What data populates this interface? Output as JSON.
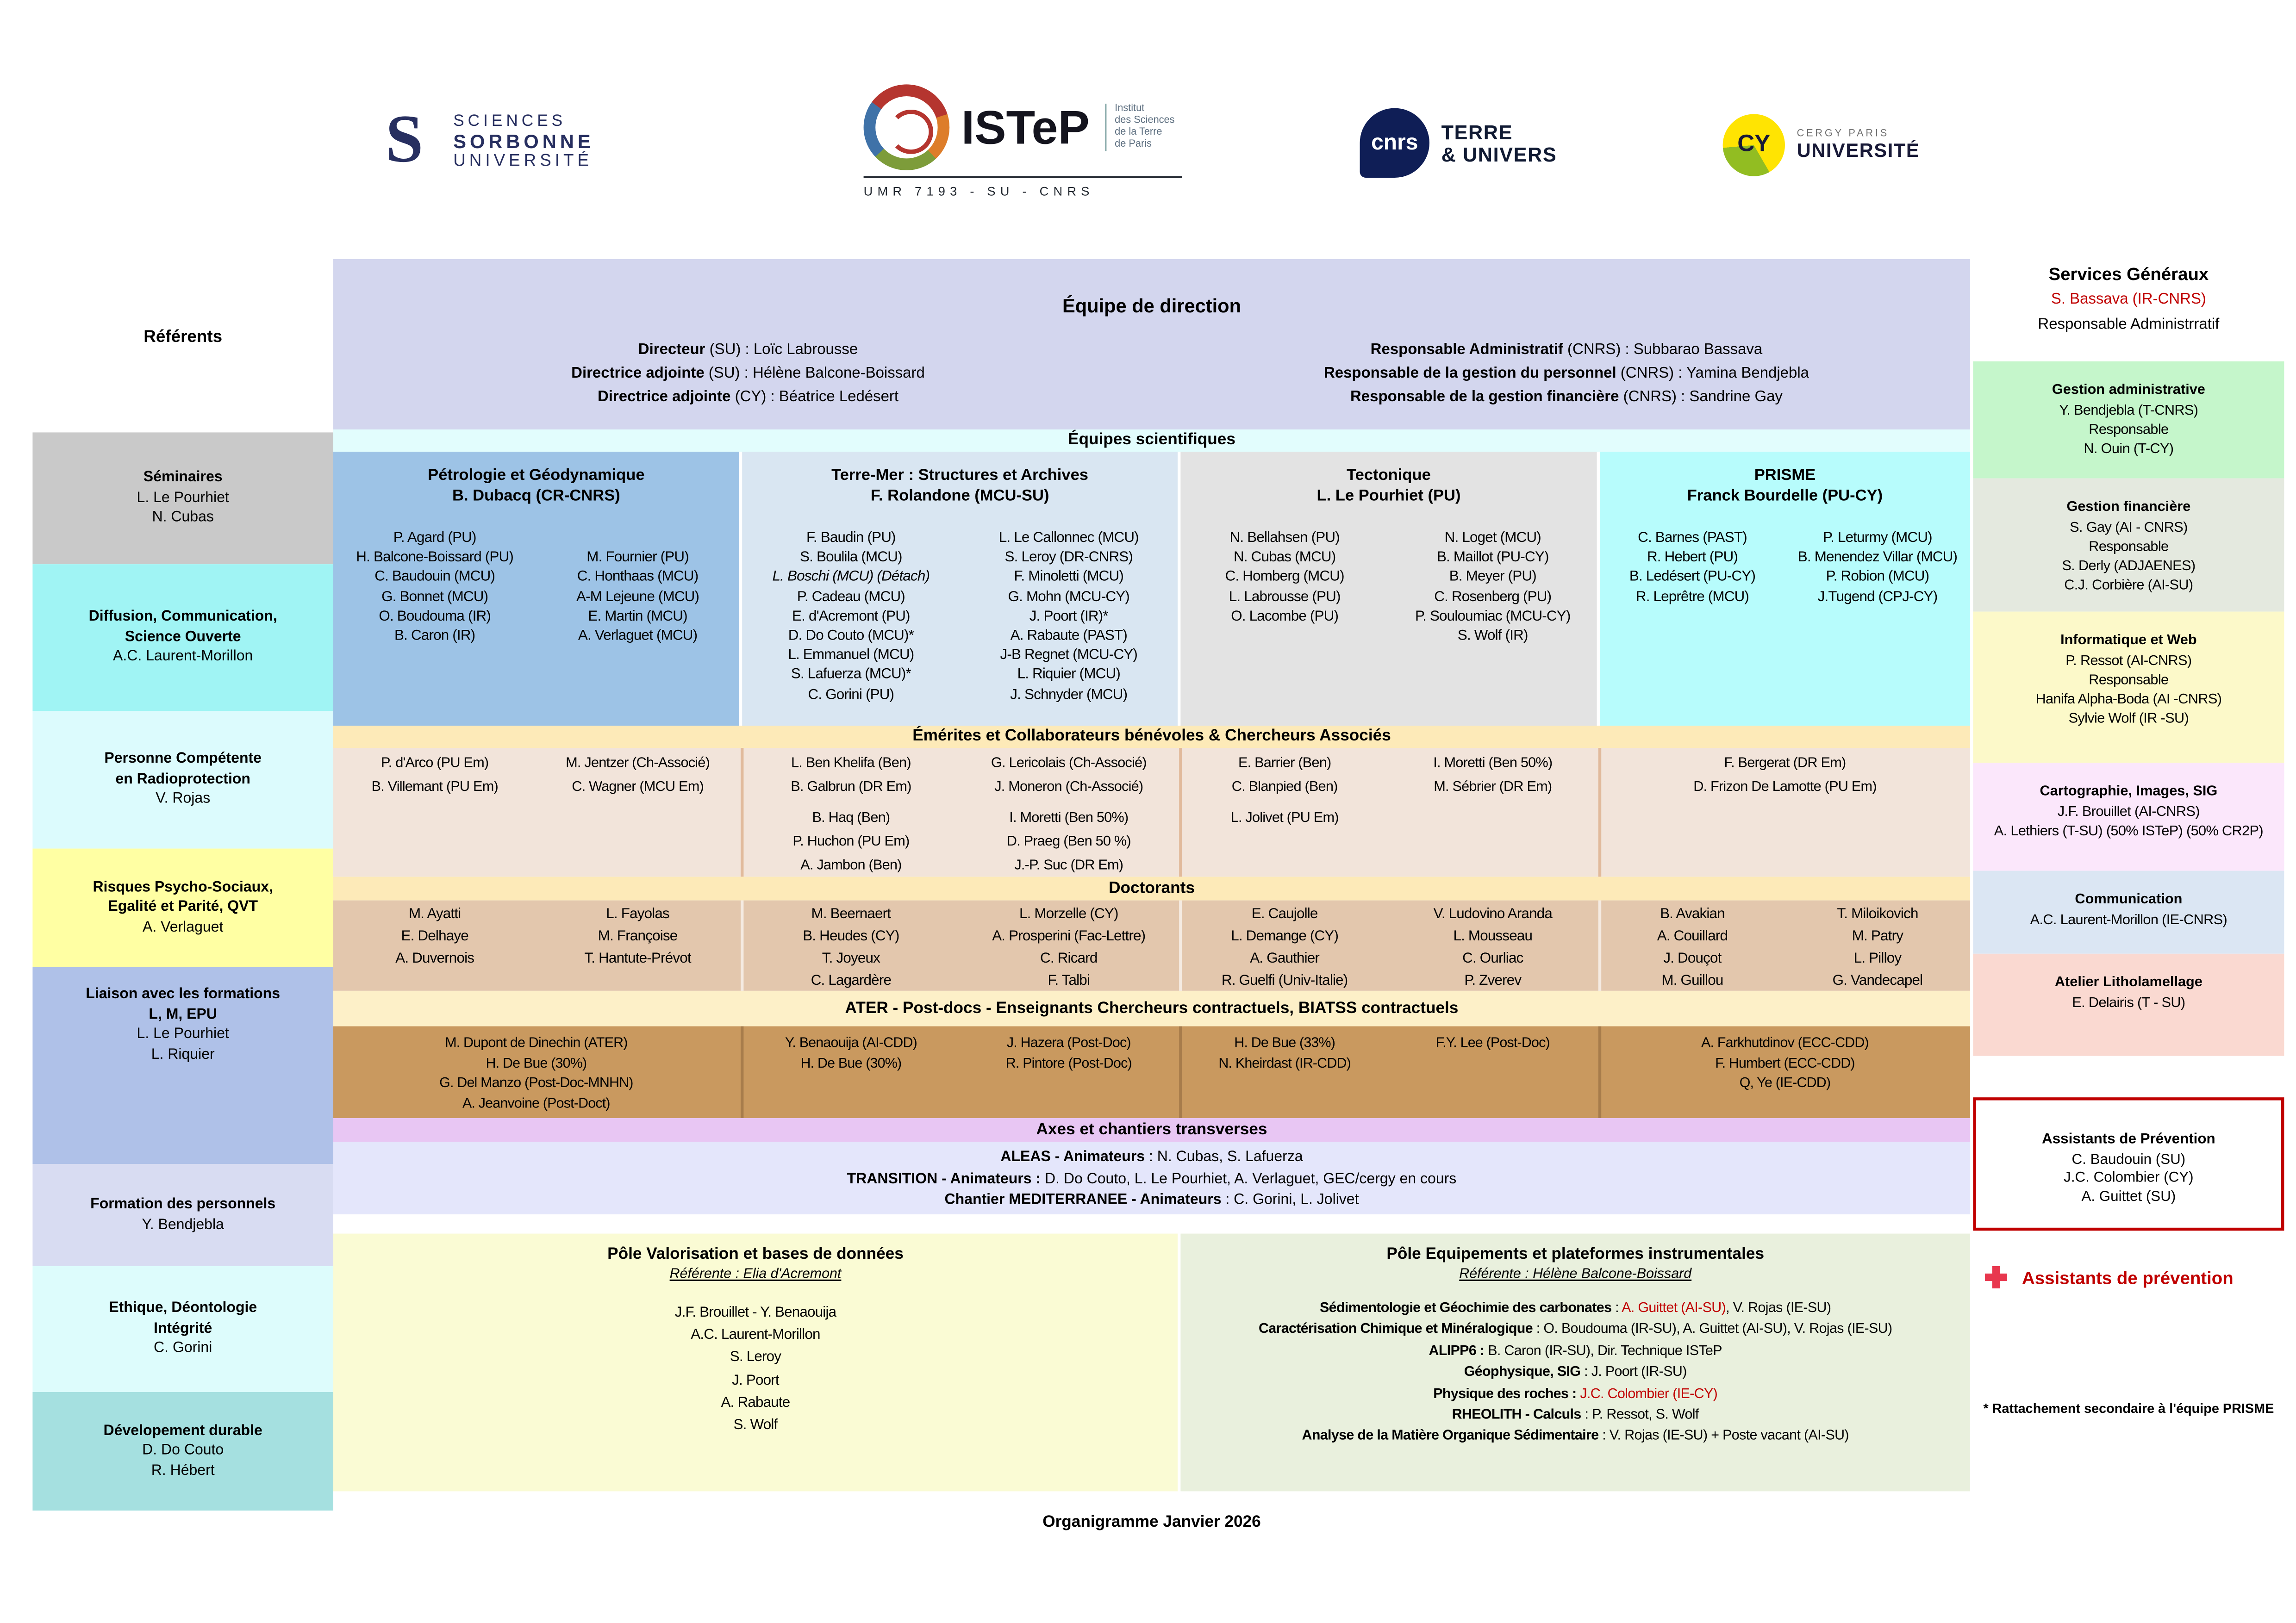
{
  "logos": {
    "sorbonne": {
      "mark": "S",
      "line1": "SCIENCES",
      "line2": "SORBONNE",
      "line3": "UNIVERSITÉ"
    },
    "istep": {
      "name": "ISTeP",
      "sub1": "Institut",
      "sub2": "des Sciences",
      "sub3": "de la Terre",
      "sub4": "de Paris",
      "umr": "UMR 7193 - SU - CNRS"
    },
    "cnrs": {
      "name": "cnrs",
      "line1": "TERRE",
      "line2": "& UNIVERS"
    },
    "cy": {
      "name": "CY",
      "line1": "CERGY PARIS",
      "line2": "UNIVERSITÉ"
    }
  },
  "referents": {
    "title": "Référents",
    "items": [
      {
        "title_lines": [
          "Séminaires"
        ],
        "names": [
          "L. Le Pourhiet",
          "N. Cubas"
        ],
        "color": "#c9c9c9"
      },
      {
        "title_lines": [
          "Diffusion, Communication,",
          "Science Ouverte"
        ],
        "names": [
          "A.C. Laurent-Morillon"
        ],
        "color": "#a0f4f4"
      },
      {
        "title_lines": [
          "Personne Compétente",
          "en Radioprotection"
        ],
        "names": [
          "V. Rojas"
        ],
        "color": "#dcfbfd"
      },
      {
        "title_lines": [
          "Risques Psycho-Sociaux,",
          "Egalité et Parité, QVT"
        ],
        "names": [
          "A. Verlaguet"
        ],
        "color": "#ffffa3"
      },
      {
        "title_lines": [
          "Liaison avec les formations",
          "L, M, EPU"
        ],
        "names": [
          "L. Le Pourhiet",
          "L. Riquier"
        ],
        "color": "#afc1e8"
      },
      {
        "title_lines": [
          "Formation des personnels"
        ],
        "names": [
          "Y. Bendjebla"
        ],
        "color": "#d8dcf2"
      },
      {
        "title_lines": [
          "Ethique, Déontologie",
          "Intégrité"
        ],
        "names": [
          "C. Gorini"
        ],
        "color": "#ddfcfc"
      },
      {
        "title_lines": [
          "Dévelopement durable"
        ],
        "names": [
          "D. Do Couto",
          "R. Hébert"
        ],
        "color": "#a5e0e0"
      }
    ]
  },
  "direction": {
    "title": "Équipe de direction",
    "left_lines": [
      {
        "bold": "Directeur",
        "rest": " (SU) : Loïc Labrousse"
      },
      {
        "bold": "Directrice adjointe",
        "rest": " (SU) : Hélène Balcone-Boissard"
      },
      {
        "bold": "Directrice adjointe",
        "rest": " (CY) : Béatrice Ledésert"
      }
    ],
    "right_lines": [
      {
        "bold": "Responsable Administratif",
        "rest": " (CNRS) : Subbarao Bassava"
      },
      {
        "bold": "Responsable de la gestion du personnel",
        "rest": " (CNRS) : Yamina Bendjebla"
      },
      {
        "bold": "Responsable de la gestion financière",
        "rest": " (CNRS) : Sandrine Gay"
      }
    ]
  },
  "bands": {
    "equipes": "Équipes scientifiques"
  },
  "teams": [
    {
      "header_lines": [
        "Pétrologie et Géodynamique",
        "B. Dubacq (CR-CNRS)"
      ],
      "color": "#9dc3e6",
      "col1": [
        "P. Agard (PU)",
        "H. Balcone-Boissard (PU)",
        "C. Baudouin (MCU)",
        "G. Bonnet (MCU)",
        "O. Boudouma (IR)",
        "B. Caron (IR)"
      ],
      "col2": [
        "",
        "M. Fournier (PU)",
        "C. Honthaas (MCU)",
        "A-M Lejeune (MCU)",
        "E. Martin (MCU)",
        "A. Verlaguet (MCU)"
      ]
    },
    {
      "header_lines": [
        "Terre-Mer : Structures et Archives",
        "F. Rolandone (MCU-SU)"
      ],
      "color": "#d9e6f2",
      "col1": [
        "F. Baudin (PU)",
        "S. Boulila (MCU)",
        {
          "t": "L. Boschi (MCU) (Détach)",
          "i": true
        },
        "P. Cadeau (MCU)",
        "E. d'Acremont (PU)",
        "D. Do Couto (MCU)*",
        "L. Emmanuel (MCU)",
        "S. Lafuerza  (MCU)*",
        "C. Gorini (PU)"
      ],
      "col2": [
        "L. Le Callonnec (MCU)",
        "S. Leroy (DR-CNRS)",
        "F. Minoletti (MCU)",
        "G. Mohn (MCU-CY)",
        "J. Poort (IR)*",
        "A. Rabaute (PAST)",
        "J-B Regnet (MCU-CY)",
        "L. Riquier (MCU)",
        "J. Schnyder (MCU)"
      ]
    },
    {
      "header_lines": [
        "Tectonique",
        "L. Le Pourhiet (PU)"
      ],
      "color": "#e3e3e3",
      "col1": [
        "N. Bellahsen (PU)",
        "N. Cubas (MCU)",
        "C. Homberg (MCU)",
        "L. Labrousse (PU)",
        "O. Lacombe (PU)"
      ],
      "col2": [
        "N. Loget (MCU)",
        "B. Maillot (PU-CY)",
        "B. Meyer (PU)",
        "C. Rosenberg (PU)",
        "P. Souloumiac  (MCU-CY)",
        "S. Wolf (IR)"
      ]
    },
    {
      "header_lines": [
        "PRISME",
        "Franck Bourdelle (PU-CY)"
      ],
      "color": "#b7fcfc",
      "col1": [
        "C. Barnes (PAST)",
        "R. Hebert (PU)",
        "B. Ledésert (PU-CY)",
        "R. Leprêtre (MCU)"
      ],
      "col2": [
        "P. Leturmy (MCU)",
        "B. Menendez Villar (MCU)",
        "P. Robion (MCU)",
        "J.Tugend (CPJ-CY)"
      ]
    }
  ],
  "emerites": {
    "title": "Émérites et Collaborateurs bénévoles & Chercheurs Associés",
    "cols": [
      {
        "col1": [
          "P. d'Arco (PU Em)",
          "B. Villemant (PU Em)"
        ],
        "col2": [
          "M. Jentzer (Ch-Associé)",
          "C. Wagner (MCU Em)"
        ]
      },
      {
        "col1": [
          "L. Ben Khelifa (Ben)",
          "B. Galbrun  (DR Em)",
          "B. Haq (Ben)",
          "P. Huchon (PU Em)",
          "A. Jambon (Ben)"
        ],
        "col2": [
          "G. Lericolais (Ch-Associé)",
          "J. Moneron (Ch-Associé)",
          "I. Moretti (Ben 50%)",
          "D. Praeg (Ben 50 %)",
          "J.-P. Suc (DR Em)"
        ]
      },
      {
        "col1": [
          "E. Barrier (Ben)",
          "C. Blanpied (Ben)",
          "L. Jolivet (PU Em)"
        ],
        "col2": [
          "I. Moretti (Ben 50%)",
          "M. Sébrier (DR Em)"
        ]
      },
      {
        "center": [
          "F. Bergerat (DR Em)",
          "D. Frizon De Lamotte (PU Em)"
        ]
      }
    ]
  },
  "doctorants": {
    "title": "Doctorants",
    "cols": [
      {
        "col1": [
          "M. Ayatti",
          "E. Delhaye",
          "A. Duvernois"
        ],
        "col2": [
          "L. Fayolas",
          "M. Françoise",
          "T. Hantute-Prévot"
        ]
      },
      {
        "col1": [
          "M. Beernaert",
          "B. Heudes (CY)",
          "T. Joyeux",
          "C. Lagardère"
        ],
        "col2": [
          "L. Morzelle (CY)",
          "A. Prosperini (Fac-Lettre)",
          "C. Ricard",
          "F. Talbi"
        ]
      },
      {
        "col1": [
          "E. Caujolle",
          "L. Demange (CY)",
          "A. Gauthier",
          "R. Guelfi (Univ-Italie)"
        ],
        "col2": [
          "V. Ludovino Aranda",
          "L. Mousseau",
          "C. Ourliac",
          "P. Zverev"
        ]
      },
      {
        "col1": [
          "B. Avakian",
          "A. Couillard",
          "J. Douçot",
          "M. Guillou"
        ],
        "col2": [
          "T. Miloikovich",
          "M. Patry",
          "L. Pilloy",
          "G. Vandecapel"
        ]
      }
    ]
  },
  "ater": {
    "title": "ATER - Post-docs - Enseignants Chercheurs contractuels, BIATSS contractuels",
    "cols": [
      {
        "center": [
          "M. Dupont de Dinechin (ATER)",
          "H. De Bue (30%)",
          "G. Del Manzo (Post-Doc-MNHN)",
          "A. Jeanvoine (Post-Doct)"
        ]
      },
      {
        "col1": [
          "Y. Benaouija (AI-CDD)",
          "H. De Bue (30%)"
        ],
        "col2": [
          "J. Hazera (Post-Doc)",
          "R. Pintore (Post-Doc)"
        ]
      },
      {
        "col1": [
          "H. De Bue (33%)",
          "N. Kheirdast (IR-CDD)"
        ],
        "col2": [
          "F.Y. Lee (Post-Doc)"
        ]
      },
      {
        "center": [
          "A. Farkhutdinov (ECC-CDD)",
          "F. Humbert (ECC-CDD)",
          "Q, Ye (IE-CDD)"
        ]
      }
    ]
  },
  "axes": {
    "title": "Axes et chantiers transverses",
    "lines": [
      {
        "bold": "ALEAS -  Animateurs",
        "rest": " : N. Cubas, S. Lafuerza"
      },
      {
        "bold": "TRANSITION - Animateurs :",
        "rest": " D. Do Couto, L. Le Pourhiet, A. Verlaguet, GEC/cergy en cours"
      },
      {
        "bold": "Chantier MEDITERRANEE -  Animateurs",
        "rest": " : C. Gorini, L. Jolivet"
      }
    ]
  },
  "pole_valorisation": {
    "title": "Pôle Valorisation et bases de données",
    "referente": "Référente : Elia d'Acremont",
    "members": [
      "J.F. Brouillet - Y. Benaouija",
      "A.C. Laurent-Morillon",
      "S. Leroy",
      "J. Poort",
      "A. Rabaute",
      "S. Wolf"
    ]
  },
  "pole_equipements": {
    "title": "Pôle Equipements et plateformes instrumentales",
    "referente": "Référente : Hélène Balcone-Boissard",
    "lines": [
      [
        {
          "t": "Sédimentologie et Géochimie des carbonates",
          "b": true
        },
        {
          "t": " : "
        },
        {
          "t": "A. Guittet (AI-SU)",
          "r": true
        },
        {
          "t": ", V. Rojas (IE-SU)"
        }
      ],
      [
        {
          "t": "Caractérisation Chimique et Minéralogique",
          "b": true
        },
        {
          "t": " : O. Boudouma (IR-SU), A. Guittet (AI-SU), V. Rojas (IE-SU)"
        }
      ],
      [
        {
          "t": "ALIPP6 :",
          "b": true
        },
        {
          "t": " B. Caron (IR-SU), Dir. Technique ISTeP"
        }
      ],
      [
        {
          "t": "Géophysique, SIG",
          "b": true
        },
        {
          "t": " : J. Poort (IR-SU)"
        }
      ],
      [
        {
          "t": "Physique des roches :",
          "b": true
        },
        {
          "t": " "
        },
        {
          "t": "J.C. Colombier (IE-CY)",
          "r": true
        }
      ],
      [
        {
          "t": "RHEOLITH - Calculs",
          "b": true
        },
        {
          "t": " : P. Ressot, S. Wolf"
        }
      ],
      [
        {
          "t": "Analyse de la Matière Organique Sédimentaire",
          "b": true
        },
        {
          "t": " : V. Rojas (IE-SU) + Poste vacant (AI-SU)"
        }
      ]
    ]
  },
  "services": {
    "title": "Services Généraux",
    "name": "S. Bassava (IR-CNRS)",
    "name_color": "#c00000",
    "role": "Responsable Administrratif",
    "boxes": [
      {
        "title": "Gestion administrative",
        "lines": [
          "Y. Bendjebla (T-CNRS)",
          "Responsable",
          "N. Ouin (T-CY)"
        ],
        "color": "#c5f6cb"
      },
      {
        "title": "Gestion financière",
        "lines": [
          "S. Gay (AI - CNRS)",
          "Responsable",
          "S. Derly (ADJAENES)",
          "C.J. Corbière (AI-SU)"
        ],
        "color": "#e4e9df"
      },
      {
        "title": "Informatique et Web",
        "lines": [
          "P. Ressot (AI-CNRS)",
          "Responsable",
          "Hanifa Alpha-Boda (AI -CNRS)",
          "Sylvie Wolf (IR -SU)"
        ],
        "color": "#fcf9c9"
      },
      {
        "title": "Cartographie, Images, SIG",
        "lines": [
          "J.F. Brouillet (AI-CNRS)",
          "A. Lethiers (T-SU) (50% ISTeP) (50% CR2P)"
        ],
        "color": "#fbe7fb"
      },
      {
        "title": "Communication",
        "lines": [
          "A.C. Laurent-Morillon (IE-CNRS)"
        ],
        "color": "#dbe6f3"
      },
      {
        "title": "Atelier Litholamellage",
        "lines": [
          "E. Delairis (T - SU)"
        ],
        "color": "#fad9d1"
      }
    ],
    "prevention_box": {
      "title": "Assistants de Prévention",
      "lines": [
        "C. Baudouin (SU)",
        "J.C. Colombier (CY)",
        "A. Guittet (SU)"
      ]
    },
    "prevention_legend": "Assistants de prévention"
  },
  "footer": {
    "note_prisme": "* Rattachement secondaire à l'équipe PRISME",
    "caption": "Organigramme Janvier 2026"
  }
}
